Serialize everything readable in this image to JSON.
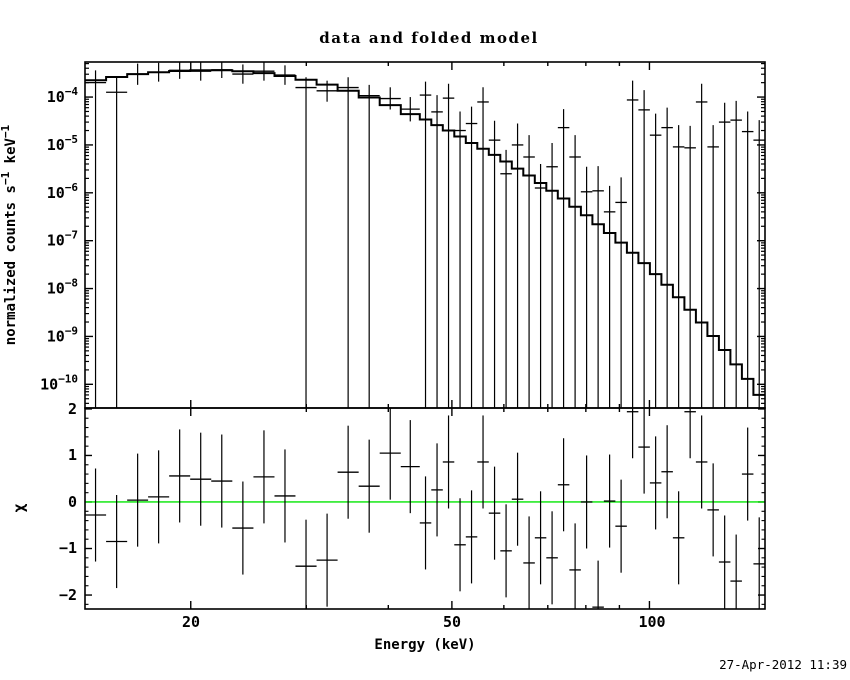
{
  "title": "data and folded model",
  "timestamp": "27-Apr-2012 11:39",
  "colors": {
    "background": "#ffffff",
    "foreground": "#000000",
    "zero_line_green": "#00e500"
  },
  "axes": {
    "x_label": "Energy (keV)",
    "x_tick_labels": [
      "20",
      "50",
      "100"
    ],
    "chi_label": "χ",
    "chi_tick_labels": [
      "2",
      "1",
      "0",
      "−1",
      "−2"
    ],
    "counts_label_parts": [
      {
        "t": "normalized counts s",
        "sup": false
      },
      {
        "t": "−1",
        "sup": true
      },
      {
        "t": " keV",
        "sup": false
      },
      {
        "t": "−1",
        "sup": true
      }
    ]
  },
  "chart_data": [
    {
      "panel": "spectrum",
      "type": "scatter",
      "title": "data and folded model",
      "ylabel": "normalized counts s−1 keV−1",
      "xscale": "log",
      "yscale": "log",
      "xlim": [
        13.8,
        150
      ],
      "ylim": [
        3.2e-11,
        0.00054
      ],
      "x_major_ticks": [
        20,
        50,
        100
      ],
      "x_minor_ticks": [
        30,
        40,
        60,
        70,
        80,
        90
      ],
      "y_tick_exponents": [
        -4,
        -5,
        -6,
        -7,
        -8,
        -9,
        -10
      ],
      "bin_edges": [
        13.8,
        14.86,
        16.0,
        17.22,
        18.54,
        19.96,
        21.49,
        23.14,
        24.92,
        26.83,
        28.88,
        31.1,
        33.48,
        36.05,
        38.81,
        41.79,
        44.67,
        46.51,
        48.43,
        50.42,
        52.5,
        54.66,
        56.91,
        59.26,
        61.7,
        64.24,
        66.89,
        69.64,
        72.51,
        75.5,
        78.61,
        81.85,
        85.22,
        88.73,
        92.38,
        96.19,
        100.15,
        104.28,
        108.57,
        113.05,
        117.7,
        122.55,
        127.6,
        132.86,
        138.33,
        144.03,
        150.0
      ],
      "series": [
        {
          "name": "data",
          "values": [
            0.0002,
            0.000126,
            0.000302,
            0.000331,
            0.000363,
            0.000347,
            0.000372,
            0.000302,
            0.000347,
            0.000288,
            0.000158,
            0.000135,
            0.000158,
            0.000107,
            9.3e-05,
            5.6e-05,
            0.00011,
            4.9e-05,
            9.5e-05,
            2e-05,
            2.8e-05,
            7.9e-05,
            1.26e-05,
            2.5e-06,
            1e-05,
            5.6e-06,
            1.26e-06,
            3.5e-06,
            2.3e-05,
            5.6e-06,
            1.05e-06,
            1.1e-06,
            4e-07,
            6.3e-07,
            8.7e-05,
            5.4e-05,
            1.6e-05,
            2.3e-05,
            9.1e-06,
            8.7e-06,
            7.9e-05,
            9.1e-06,
            3e-05,
            3.3e-05,
            1.9e-05,
            1.26e-05
          ],
          "err_hi": [
            0.00036,
            0.00026,
            0.0005,
            0.00052,
            0.00054,
            0.00053,
            0.00054,
            0.00048,
            0.00054,
            0.00046,
            0.00026,
            0.00022,
            0.00026,
            0.00018,
            0.00016,
            0.0001,
            0.00021,
            0.00011,
            0.00019,
            5e-05,
            6.3e-05,
            0.00016,
            3.2e-05,
            7.9e-06,
            2.8e-05,
            1.6e-05,
            4e-06,
            1.1e-05,
            5.6e-05,
            1.6e-05,
            3.5e-06,
            3.6e-06,
            1.4e-06,
            2.1e-06,
            0.00022,
            0.00014,
            4.5e-05,
            6e-05,
            2.6e-05,
            2.5e-05,
            0.00019,
            2.6e-05,
            7.6e-05,
            8.3e-05,
            5e-05,
            3.3e-05
          ],
          "err_lo": [
            null,
            null,
            0.00018,
            0.00021,
            0.00024,
            0.00022,
            0.00025,
            0.00019,
            0.00022,
            0.00018,
            null,
            8e-05,
            null,
            null,
            5.5e-05,
            3.1e-05,
            null,
            null,
            null,
            null,
            null,
            null,
            null,
            null,
            null,
            null,
            null,
            null,
            null,
            null,
            null,
            null,
            null,
            null,
            null,
            null,
            null,
            null,
            null,
            null,
            null,
            null,
            null,
            null,
            null,
            null
          ]
        },
        {
          "name": "folded model",
          "values": [
            0.000224,
            0.000263,
            0.000302,
            0.000331,
            0.000351,
            0.000363,
            0.000363,
            0.000347,
            0.000316,
            0.000275,
            0.000229,
            0.000182,
            0.000135,
            9.8e-05,
            6.8e-05,
            4.4e-05,
            3.4e-05,
            2.6e-05,
            2e-05,
            1.5e-05,
            1.1e-05,
            8.3e-06,
            6.2e-06,
            4.5e-06,
            3.2e-06,
            2.3e-06,
            1.6e-06,
            1.1e-06,
            7.6e-07,
            5.1e-07,
            3.4e-07,
            2.2e-07,
            1.45e-07,
            9.1e-08,
            5.6e-08,
            3.4e-08,
            2e-08,
            1.2e-08,
            6.6e-09,
            3.6e-09,
            1.95e-09,
            1.02e-09,
            5.2e-10,
            2.6e-10,
            1.3e-10,
            6e-11
          ]
        }
      ]
    },
    {
      "panel": "residuals",
      "type": "scatter",
      "ylabel": "χ",
      "xlabel": "Energy (keV)",
      "xscale": "log",
      "xlim": [
        13.8,
        150
      ],
      "ylim": [
        -2.3,
        2.02
      ],
      "y_major_ticks": [
        -2,
        -1,
        0,
        1,
        2
      ],
      "zero_line": 0,
      "values": [
        -0.28,
        -0.85,
        0.04,
        0.11,
        0.56,
        0.49,
        0.45,
        -0.56,
        0.54,
        0.13,
        -1.38,
        -1.25,
        0.64,
        0.34,
        1.05,
        0.76,
        -0.45,
        0.26,
        0.86,
        -0.92,
        -0.75,
        0.86,
        -0.24,
        -1.05,
        0.06,
        -1.31,
        -0.77,
        -1.2,
        0.37,
        -1.46,
        0.0,
        -2.26,
        0.02,
        -0.52,
        1.94,
        1.18,
        0.41,
        0.65,
        -0.77,
        1.94,
        0.86,
        -0.17,
        -1.29,
        -1.7,
        0.6,
        -1.33
      ],
      "err": 1.0
    }
  ]
}
